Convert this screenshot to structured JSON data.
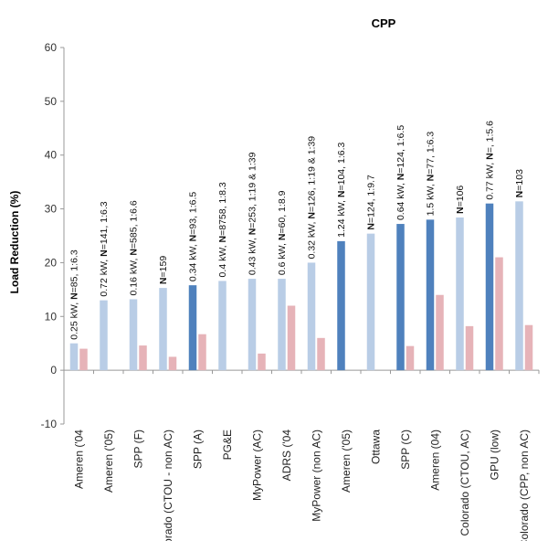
{
  "chart_data": {
    "type": "bar",
    "title": "CPP",
    "xlabel": "",
    "ylabel": "Load Reduction (%)",
    "ylim": [
      -10,
      60
    ],
    "yticks": [
      "-10",
      "0",
      "10",
      "20",
      "30",
      "40",
      "50",
      "60"
    ],
    "grid": false,
    "categories": [
      "Ameren ('04",
      "Ameren ('05)",
      "SPP (F)",
      "Colorado (CTOU - non AC)",
      "SPP (A)",
      "PG&E",
      "MyPower (AC)",
      "ADRS ('04",
      "MyPower (non AC)",
      "Ameren ('05)",
      "Ottawa",
      "SPP (C)",
      "Ameren (04)",
      "Colorado (CTOU, AC)",
      "GPU (low)",
      "Colorado (CPP, non AC)"
    ],
    "series": [
      {
        "values": [
          5,
          13,
          13.2,
          15.3,
          15.8,
          16.6,
          17,
          17,
          20,
          24,
          25.4,
          27.2,
          28,
          28.4,
          31,
          31.4
        ],
        "colors": [
          "#b9cde6",
          "#b9cde6",
          "#b9cde6",
          "#b9cde6",
          "#4f81bd",
          "#b9cde6",
          "#b9cde6",
          "#b9cde6",
          "#b9cde6",
          "#4f81bd",
          "#b9cde6",
          "#4f81bd",
          "#4f81bd",
          "#b9cde6",
          "#4f81bd",
          "#b9cde6"
        ]
      },
      {
        "values": [
          4,
          0,
          4.6,
          2.5,
          6.7,
          0,
          3.1,
          12,
          6,
          0,
          0,
          4.5,
          14,
          8.2,
          21,
          8.4
        ],
        "color": "#e6b3b8"
      }
    ],
    "bar_annotations": [
      {
        "prefix": "0.25 kW, ",
        "bold": "N",
        "suffix": "=85, 1:6.3"
      },
      {
        "prefix": "0.72 kW, ",
        "bold": "N",
        "suffix": "=141, 1:6.3"
      },
      {
        "prefix": "0.16 kW, ",
        "bold": "N",
        "suffix": "=585, 1:6.6"
      },
      {
        "prefix": "",
        "bold": "N",
        "suffix": "=159"
      },
      {
        "prefix": "0.34 kW, ",
        "bold": "N",
        "suffix": "=93, 1:6.5"
      },
      {
        "prefix": "0.4 kW, ",
        "bold": "N",
        "suffix": "=8758, 1:8.3"
      },
      {
        "prefix": "0.43 kW, ",
        "bold": "N",
        "suffix": "=253, 1:19 & 1:39"
      },
      {
        "prefix": "0.6 kW, ",
        "bold": "N",
        "suffix": "=60, 1:8.9"
      },
      {
        "prefix": "0.32 kW, ",
        "bold": "N",
        "suffix": "=126, 1:19 & 1:39"
      },
      {
        "prefix": "1.24 kW, ",
        "bold": "N",
        "suffix": "=104, 1:6.3"
      },
      {
        "prefix": "",
        "bold": "N",
        "suffix": "=124, 1:9.7"
      },
      {
        "prefix": "0.64 kW, ",
        "bold": "N",
        "suffix": "=124, 1:6.5"
      },
      {
        "prefix": "1.5 kW, ",
        "bold": "N",
        "suffix": "=77, 1:6.3"
      },
      {
        "prefix": "",
        "bold": "N",
        "suffix": "=106"
      },
      {
        "prefix": "0.77 kW, ",
        "bold": "N",
        "suffix": "=, 1:5.6"
      },
      {
        "prefix": "",
        "bold": "N",
        "suffix": "=103"
      }
    ]
  }
}
